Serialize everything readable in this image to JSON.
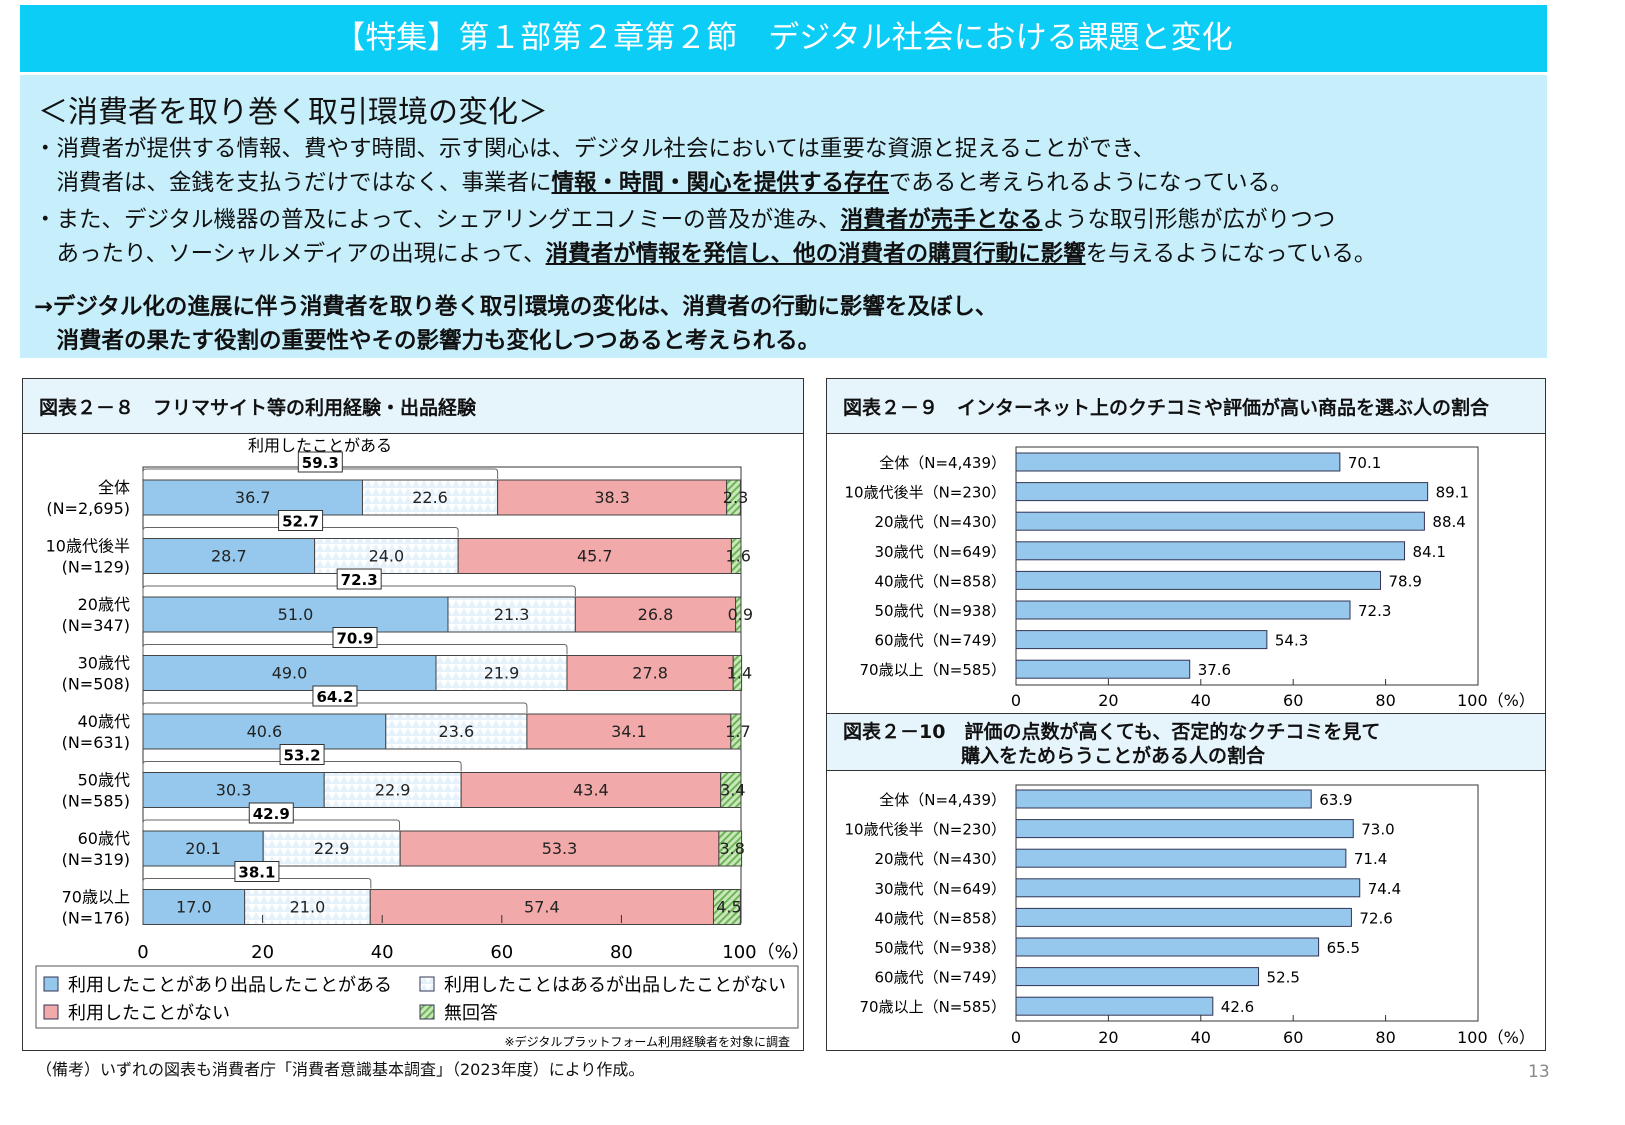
{
  "title": "【特集】第１部第２章第２節　デジタル社会における課題と変化",
  "intro": {
    "heading": "＜消費者を取り巻く取引環境の変化＞",
    "p1a": "・消費者が提供する情報、費やす時間、示す関心は、デジタル社会においては重要な資源と捉えることができ、",
    "p1b_pre": "　消費者は、金銭を支払うだけではなく、事業者に",
    "p1b_em": "情報・時間・関心を提供する存在",
    "p1b_post": "であると考えられるようになっている。",
    "p2a_pre": "・また、デジタル機器の普及によって、シェアリングエコノミーの普及が進み、",
    "p2a_em": "消費者が売手となる",
    "p2a_post": "ような取引形態が広がりつつ",
    "p2b_pre": "　あったり、ソーシャルメディアの出現によって、",
    "p2b_em": "消費者が情報を発信し、他の消費者の購買行動に影響",
    "p2b_post": "を与えるようになっている。",
    "c1": "→デジタル化の進展に伴う消費者を取り巻く取引環境の変化は、消費者の行動に影響を及ぼし、",
    "c2": "　消費者の果たす役割の重要性やその影響力も変化しつつあると考えられる。"
  },
  "footer": "（備考）いずれの図表も消費者庁「消費者意識基本調査」（2023年度）により作成。",
  "page_number": "13",
  "chart_data": [
    {
      "type": "bar",
      "stacked": true,
      "orientation": "horizontal",
      "title": "図表２－８　フリマサイト等の利用経験・出品経験",
      "bracket_label": "利用したことがある",
      "categories": [
        "全体",
        "10歳代後半",
        "20歳代",
        "30歳代",
        "40歳代",
        "50歳代",
        "60歳代",
        "70歳以上"
      ],
      "category_n": [
        "(N=2,695)",
        "(N=129)",
        "(N=347)",
        "(N=508)",
        "(N=631)",
        "(N=585)",
        "(N=319)",
        "(N=176)"
      ],
      "used_total": [
        "59.3",
        "52.7",
        "72.3",
        "70.9",
        "64.2",
        "53.2",
        "42.9",
        "38.1"
      ],
      "series": [
        {
          "name": "利用したことがあり出品したことがある",
          "color": "#95c8ec",
          "values": [
            36.7,
            28.7,
            51.0,
            49.0,
            40.6,
            30.3,
            20.1,
            17.0
          ]
        },
        {
          "name": "利用したことはあるが出品したことがない",
          "color": "#e6f2fb",
          "values": [
            22.6,
            24.0,
            21.3,
            21.9,
            23.6,
            22.9,
            22.9,
            21.0
          ]
        },
        {
          "name": "利用したことがない",
          "color": "#f2a9a9",
          "values": [
            38.3,
            45.7,
            26.8,
            27.8,
            34.1,
            43.4,
            53.3,
            57.4
          ]
        },
        {
          "name": "無回答",
          "color": "#9ed08a",
          "values": [
            2.3,
            1.6,
            0.9,
            1.4,
            1.7,
            3.4,
            3.8,
            4.5
          ]
        }
      ],
      "xticks": [
        "0",
        "20",
        "40",
        "60",
        "80",
        "100（%）"
      ],
      "xlim": [
        0,
        100
      ],
      "note": "※デジタルプラットフォーム利用経験者を対象に調査"
    },
    {
      "type": "bar",
      "orientation": "horizontal",
      "title": "図表２－９　インターネット上のクチコミや評価が高い商品を選ぶ人の割合",
      "categories": [
        "全体（N=4,439）",
        "10歳代後半（N=230）",
        "20歳代（N=430）",
        "30歳代（N=649）",
        "40歳代（N=858）",
        "50歳代（N=938）",
        "60歳代（N=749）",
        "70歳以上（N=585）"
      ],
      "values": [
        70.1,
        89.1,
        88.4,
        84.1,
        78.9,
        72.3,
        54.3,
        37.6
      ],
      "color": "#95c8ec",
      "xticks": [
        "0",
        "20",
        "40",
        "60",
        "80",
        "100（%）"
      ],
      "xlim": [
        0,
        100
      ]
    },
    {
      "type": "bar",
      "orientation": "horizontal",
      "title": "図表２－10　評価の点数が高くても、否定的なクチコミを見て",
      "title2": "購入をためらうことがある人の割合",
      "categories": [
        "全体（N=4,439）",
        "10歳代後半（N=230）",
        "20歳代（N=430）",
        "30歳代（N=649）",
        "40歳代（N=858）",
        "50歳代（N=938）",
        "60歳代（N=749）",
        "70歳以上（N=585）"
      ],
      "values": [
        63.9,
        73.0,
        71.4,
        74.4,
        72.6,
        65.5,
        52.5,
        42.6
      ],
      "color": "#95c8ec",
      "xticks": [
        "0",
        "20",
        "40",
        "60",
        "80",
        "100（%）"
      ],
      "xlim": [
        0,
        100
      ]
    }
  ]
}
